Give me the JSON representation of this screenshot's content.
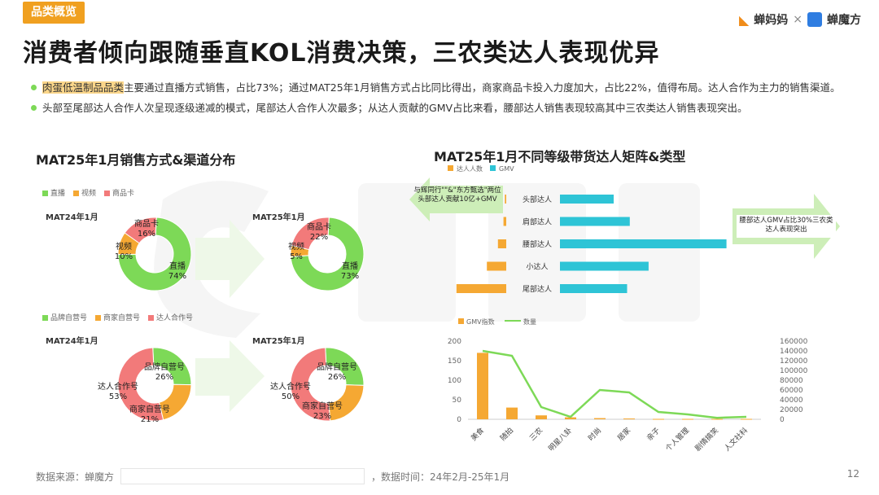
{
  "header": {
    "tag": "品类概览",
    "logo_primary": "蝉妈妈",
    "logo_separator": "×",
    "logo_secondary": "蝉魔方",
    "title": "消费者倾向跟随垂直KOL消费决策，三农类达人表现优异"
  },
  "bullets": [
    {
      "highlight": "肉蛋低温制品品类",
      "text": "主要通过直播方式销售，占比73%；通过MAT25年1月销售方式占比同比得出，商家商品卡投入力度加大，占比22%，值得布局。达人合作为主力的销售渠道。"
    },
    {
      "highlight": "",
      "text": "头部至尾部达人合作人次呈现逐级递减的模式，尾部达人合作人次最多；从达人贡献的GMV占比来看，腰部达人销售表现较高其中三农类达人销售表现突出。"
    }
  ],
  "left_section": {
    "title": "MAT25年1月销售方式&渠道分布",
    "legend1": [
      {
        "label": "直播",
        "color": "#7dd957"
      },
      {
        "label": "视频",
        "color": "#f5a833"
      },
      {
        "label": "商品卡",
        "color": "#f27a7a"
      }
    ],
    "legend2": [
      {
        "label": "品牌自营号",
        "color": "#7dd957"
      },
      {
        "label": "商家自营号",
        "color": "#f5a833"
      },
      {
        "label": "达人合作号",
        "color": "#f27a7a"
      }
    ],
    "donut1_period": "MAT24年1月",
    "donut2_period": "MAT25年1月",
    "donut3_period": "MAT24年1月",
    "donut4_period": "MAT25年1月"
  },
  "chart_data": [
    {
      "type": "pie",
      "subtitle": "MAT24年1月",
      "slices": [
        {
          "label": "直播",
          "value": 74,
          "display": "74%"
        },
        {
          "label": "视频",
          "value": 10,
          "display": "10%"
        },
        {
          "label": "商品卡",
          "value": 16,
          "display": "16%"
        }
      ]
    },
    {
      "type": "pie",
      "subtitle": "MAT25年1月",
      "slices": [
        {
          "label": "直播",
          "value": 73,
          "display": "73%"
        },
        {
          "label": "视频",
          "value": 5,
          "display": "5%"
        },
        {
          "label": "商品卡",
          "value": 22,
          "display": "22%"
        }
      ]
    },
    {
      "type": "pie",
      "subtitle": "MAT24年1月",
      "slices": [
        {
          "label": "品牌自营号",
          "value": 26,
          "display": "26%"
        },
        {
          "label": "商家自营号",
          "value": 21,
          "display": "21%"
        },
        {
          "label": "达人合作号",
          "value": 53,
          "display": "53%"
        }
      ]
    },
    {
      "type": "pie",
      "subtitle": "MAT25年1月",
      "slices": [
        {
          "label": "品牌自营号",
          "value": 26,
          "display": "26%"
        },
        {
          "label": "商家自营号",
          "value": 23,
          "display": "23%"
        },
        {
          "label": "达人合作号",
          "value": 50,
          "display": "50%"
        }
      ]
    },
    {
      "type": "bar",
      "title": "MAT25年1月不同等级带货达人矩阵&类型",
      "orientation": "horizontal-butterfly",
      "categories": [
        "头部达人",
        "肩部达人",
        "腰部达人",
        "小达人",
        "尾部达人"
      ],
      "series": [
        {
          "name": "达人人数",
          "color": "#f5a833",
          "values": [
            1,
            2,
            6,
            14,
            40
          ]
        },
        {
          "name": "GMV",
          "color": "#2ec4d6",
          "values": [
            20,
            26,
            62,
            33,
            25
          ]
        }
      ],
      "left_annotation": "与辉同行\"\"&\"东方甄选\"两位头部达人贡献10亿+GMV",
      "right_annotation": "腰部达人GMV占比30%三农类达人表现突出"
    },
    {
      "type": "bar",
      "categories": [
        "美食",
        "随拍",
        "三农",
        "明星八卦",
        "时尚",
        "居家",
        "亲子",
        "个人管理",
        "剧情搞笑",
        "人文社科"
      ],
      "series": [
        {
          "name": "GMV指数",
          "type": "bar",
          "color": "#f5a833",
          "axis": "left",
          "values": [
            170,
            30,
            10,
            5,
            3,
            2,
            1,
            1,
            1,
            1
          ]
        },
        {
          "name": "数量",
          "type": "line",
          "color": "#7dd957",
          "axis": "right",
          "values": [
            140000,
            130000,
            25000,
            5000,
            60000,
            55000,
            15000,
            10000,
            3000,
            5000
          ]
        }
      ],
      "y_left": {
        "ticks": [
          "200",
          "150",
          "100",
          "50",
          "0"
        ],
        "ylim": [
          0,
          200
        ]
      },
      "y_right": {
        "ticks": [
          "160000",
          "140000",
          "120000",
          "100000",
          "80000",
          "60000",
          "40000",
          "20000",
          "0"
        ],
        "ylim": [
          0,
          160000
        ]
      }
    }
  ],
  "footer": {
    "source_label": "数据来源：蝉魔方",
    "time_label": "，数据时间：24年2月-25年1月",
    "page": "12"
  }
}
